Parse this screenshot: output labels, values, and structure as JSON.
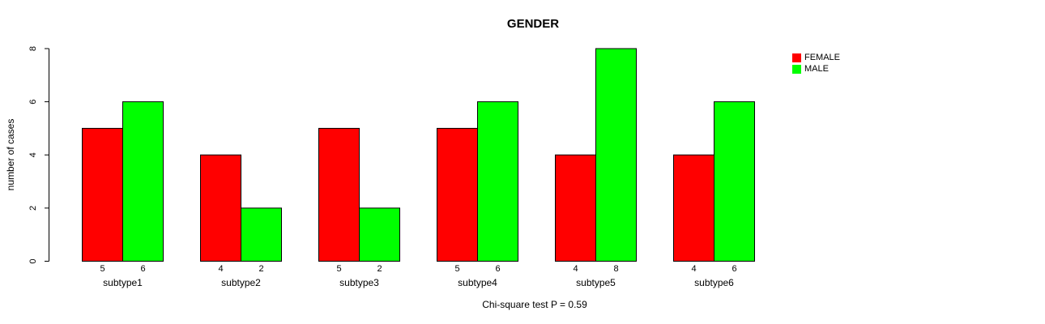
{
  "chart_data": {
    "type": "bar",
    "title": "GENDER",
    "categories": [
      "subtype1",
      "subtype2",
      "subtype3",
      "subtype4",
      "subtype5",
      "subtype6"
    ],
    "series": [
      {
        "name": "FEMALE",
        "color": "#ff0000",
        "values": [
          5,
          4,
          5,
          5,
          4,
          4
        ]
      },
      {
        "name": "MALE",
        "color": "#00ff00",
        "values": [
          6,
          2,
          2,
          6,
          8,
          6
        ]
      }
    ],
    "xlabel": "",
    "ylabel": "number of cases",
    "ylim": [
      0,
      8
    ],
    "yticks": [
      0,
      2,
      4,
      6,
      8
    ],
    "show_values_below_bars": true,
    "grid": false,
    "legend_position": "top-right",
    "bar_border_color": "#000000",
    "axis_color": "#000000",
    "annotation": "Chi-square test P = 0.59"
  }
}
